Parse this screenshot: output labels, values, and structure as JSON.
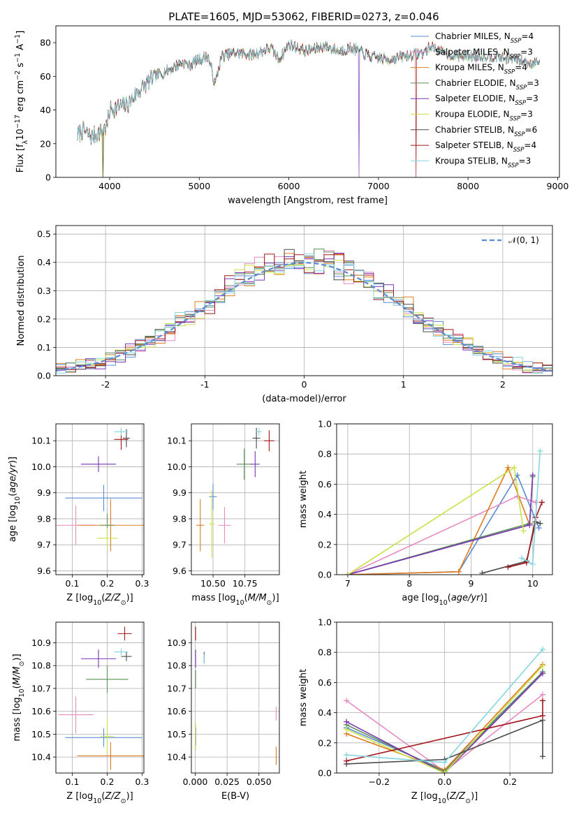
{
  "title": "PLATE=1605, MJD=53062, FIBERID=0273, z=0.046",
  "colors": {
    "Chabrier MILES": "#5b8bd6",
    "Salpeter MILES": "#e78ac3",
    "Kroupa MILES": "#e07b1f",
    "Chabrier ELODIE": "#5a8f55",
    "Salpeter ELODIE": "#7b35b5",
    "Kroupa ELODIE": "#c9e24a",
    "Chabrier STELIB": "#4a4a4a",
    "Salpeter STELIB": "#a3161c",
    "Kroupa STELIB": "#84d6e0",
    "normal": "#5b8bd6"
  },
  "chart_data": [
    {
      "id": "spectrum",
      "type": "line",
      "xlabel": "wavelength [Angstrom, rest frame]",
      "ylabel": "Flux [f_λ 10^-17 erg cm^-2 s^-1 A^-1]",
      "xlim": [
        3400,
        9020
      ],
      "ylim": [
        0,
        90
      ],
      "xticks": [
        "4000",
        "5000",
        "6000",
        "7000",
        "8000",
        "9000"
      ],
      "yticks": [
        "0",
        "20",
        "40",
        "60",
        "80"
      ],
      "grid": false,
      "legend": "upper-right",
      "legend_entries": [
        {
          "model": "Chabrier MILES",
          "ssp": "4"
        },
        {
          "model": "Salpeter MILES",
          "ssp": "3"
        },
        {
          "model": "Kroupa MILES",
          "ssp": "4"
        },
        {
          "model": "Chabrier ELODIE",
          "ssp": "3"
        },
        {
          "model": "Salpeter ELODIE",
          "ssp": "3"
        },
        {
          "model": "Kroupa ELODIE",
          "ssp": "3"
        },
        {
          "model": "Chabrier STELIB",
          "ssp": "6"
        },
        {
          "model": "Salpeter STELIB",
          "ssp": "4"
        },
        {
          "model": "Kroupa STELIB",
          "ssp": "3"
        }
      ],
      "continuum": [
        [
          3640,
          25
        ],
        [
          3700,
          28
        ],
        [
          3800,
          24
        ],
        [
          3900,
          27
        ],
        [
          3970,
          30
        ],
        [
          4000,
          40
        ],
        [
          4100,
          42
        ],
        [
          4200,
          43
        ],
        [
          4300,
          50
        ],
        [
          4400,
          55
        ],
        [
          4500,
          60
        ],
        [
          4600,
          62
        ],
        [
          4700,
          65
        ],
        [
          4800,
          68
        ],
        [
          4900,
          67
        ],
        [
          5000,
          70
        ],
        [
          5100,
          72
        ],
        [
          5175,
          55
        ],
        [
          5250,
          72
        ],
        [
          5400,
          74
        ],
        [
          5600,
          73
        ],
        [
          5800,
          77
        ],
        [
          5890,
          70
        ],
        [
          6000,
          79
        ],
        [
          6200,
          75
        ],
        [
          6400,
          78
        ],
        [
          6560,
          75
        ],
        [
          6700,
          77
        ],
        [
          6900,
          72
        ],
        [
          7100,
          70
        ],
        [
          7300,
          72
        ],
        [
          7500,
          74
        ],
        [
          7600,
          78
        ],
        [
          7700,
          74
        ],
        [
          7900,
          72
        ],
        [
          8100,
          72
        ],
        [
          8300,
          72
        ],
        [
          8500,
          70
        ],
        [
          8700,
          68
        ],
        [
          8800,
          69
        ]
      ],
      "dips": [
        {
          "series": "Kroupa ELODIE",
          "x": 3920
        },
        {
          "series": "Chabrier STELIB",
          "x": 3930
        },
        {
          "series": "Salpeter ELODIE",
          "x": 6780
        },
        {
          "series": "Salpeter STELIB",
          "x": 7420
        }
      ]
    },
    {
      "id": "residuals",
      "type": "line",
      "xlabel": "(data-model)/error",
      "ylabel": "Normed distribution",
      "xlim": [
        -2.5,
        2.5
      ],
      "ylim": [
        0,
        0.53
      ],
      "xticks": [
        -2,
        -1,
        0,
        1,
        2
      ],
      "yticks": [
        "0.0",
        "0.1",
        "0.2",
        "0.3",
        "0.4",
        "0.5"
      ],
      "grid": true,
      "legend": "upper-right",
      "legend_label": "𝒩(0, 1)",
      "bin_width": 0.1,
      "bin_start": -2.5,
      "curve": {
        "mu": 0,
        "sigma": 1
      }
    },
    {
      "id": "age-vs-Z",
      "type": "scatter",
      "xlabel": "Z [log10(Z/Z⊙)]",
      "ylabel": "age  [log10(age/yr)]",
      "xlim": [
        0.053,
        0.305
      ],
      "ylim": [
        9.585,
        10.165
      ],
      "xticks": [
        "0.1",
        "0.2",
        "0.3"
      ],
      "yticks": [
        "9.6",
        "9.7",
        "9.8",
        "9.9",
        "10.0",
        "10.1"
      ],
      "grid": true,
      "points": [
        {
          "series": "Chabrier MILES",
          "x": 0.19,
          "y": 9.88,
          "xerr": 0.11,
          "yerr": 0.05
        },
        {
          "series": "Salpeter MILES",
          "x": 0.11,
          "y": 9.775,
          "xerr": 0.055,
          "yerr": 0.075
        },
        {
          "series": "Kroupa MILES",
          "x": 0.21,
          "y": 9.775,
          "xerr": 0.095,
          "yerr": 0.1
        },
        {
          "series": "Chabrier ELODIE",
          "x": 0.2,
          "y": 9.775,
          "xerr": 0.02,
          "yerr": 0.045
        },
        {
          "series": "Salpeter ELODIE",
          "x": 0.175,
          "y": 10.01,
          "xerr": 0.05,
          "yerr": 0.03
        },
        {
          "series": "Kroupa ELODIE",
          "x": 0.2,
          "y": 9.725,
          "xerr": 0.03,
          "yerr": 0.04
        },
        {
          "series": "Chabrier STELIB",
          "x": 0.255,
          "y": 10.11,
          "xerr": 0.01,
          "yerr": 0.035
        },
        {
          "series": "Salpeter STELIB",
          "x": 0.24,
          "y": 10.105,
          "xerr": 0.02,
          "yerr": 0.04
        },
        {
          "series": "Kroupa STELIB",
          "x": 0.24,
          "y": 10.135,
          "xerr": 0.02,
          "yerr": 0.015
        }
      ]
    },
    {
      "id": "age-vs-mass",
      "type": "scatter",
      "xlabel": "mass [log10(M/M⊙)]",
      "ylabel": "",
      "xlim": [
        10.33,
        11.02
      ],
      "ylim": [
        9.585,
        10.165
      ],
      "xticks": [
        "10.50",
        "10.75"
      ],
      "yticks": [
        "9.6",
        "9.7",
        "9.8",
        "9.9",
        "10.0",
        "10.1"
      ],
      "grid": true,
      "points": [
        {
          "series": "Chabrier MILES",
          "x": 10.5,
          "y": 9.885,
          "xerr": 0.03,
          "yerr": 0.05
        },
        {
          "series": "Salpeter MILES",
          "x": 10.59,
          "y": 9.775,
          "xerr": 0.05,
          "yerr": 0.07
        },
        {
          "series": "Kroupa MILES",
          "x": 10.4,
          "y": 9.775,
          "xerr": 0.03,
          "yerr": 0.1
        },
        {
          "series": "Chabrier ELODIE",
          "x": 10.745,
          "y": 10.01,
          "xerr": 0.06,
          "yerr": 0.06
        },
        {
          "series": "Salpeter ELODIE",
          "x": 10.83,
          "y": 10.01,
          "xerr": 0.035,
          "yerr": 0.05
        },
        {
          "series": "Kroupa ELODIE",
          "x": 10.49,
          "y": 9.78,
          "xerr": 0.02,
          "yerr": 0.13
        },
        {
          "series": "Chabrier STELIB",
          "x": 10.84,
          "y": 10.11,
          "xerr": 0.03,
          "yerr": 0.04
        },
        {
          "series": "Salpeter STELIB",
          "x": 10.94,
          "y": 10.1,
          "xerr": 0.04,
          "yerr": 0.04
        },
        {
          "series": "Kroupa STELIB",
          "x": 10.86,
          "y": 10.135,
          "xerr": 0.02,
          "yerr": 0.015
        }
      ]
    },
    {
      "id": "weight-vs-age",
      "type": "line",
      "xlabel": "age  [log10(age/yr)]",
      "ylabel": "mass weight",
      "xlim": [
        6.82,
        10.32
      ],
      "ylim": [
        0,
        1
      ],
      "xticks": [
        "7",
        "8",
        "9",
        "10"
      ],
      "yticks": [
        "0.0",
        "0.2",
        "0.4",
        "0.6",
        "0.8",
        "1.0"
      ],
      "grid": true,
      "series": [
        {
          "name": "Chabrier MILES",
          "x": [
            7.0,
            8.8,
            9.75,
            10.1
          ],
          "y": [
            0.0,
            0.02,
            0.66,
            0.31
          ]
        },
        {
          "name": "Salpeter MILES",
          "x": [
            7.0,
            9.75,
            10.05
          ],
          "y": [
            0.0,
            0.52,
            0.48
          ]
        },
        {
          "name": "Kroupa MILES",
          "x": [
            7.0,
            8.8,
            9.6,
            9.95
          ],
          "y": [
            0.0,
            0.02,
            0.71,
            0.33
          ]
        },
        {
          "name": "Chabrier ELODIE",
          "x": [
            7.0,
            9.95,
            10.0
          ],
          "y": [
            0.0,
            0.34,
            0.65
          ]
        },
        {
          "name": "Salpeter ELODIE",
          "x": [
            7.0,
            9.95,
            10.0
          ],
          "y": [
            0.0,
            0.33,
            0.66
          ]
        },
        {
          "name": "Kroupa ELODIE",
          "x": [
            7.0,
            9.7,
            9.85
          ],
          "y": [
            0.0,
            0.71,
            0.29
          ]
        },
        {
          "name": "Chabrier STELIB",
          "x": [
            9.18,
            9.9,
            10.05,
            10.12
          ],
          "y": [
            0.01,
            0.09,
            0.35,
            0.34
          ]
        },
        {
          "name": "Salpeter STELIB",
          "x": [
            9.6,
            9.9,
            10.05,
            10.15
          ],
          "y": [
            0.05,
            0.08,
            0.38,
            0.48
          ]
        },
        {
          "name": "Kroupa STELIB",
          "x": [
            9.82,
            10.0,
            10.12
          ],
          "y": [
            0.11,
            0.07,
            0.82
          ]
        }
      ]
    },
    {
      "id": "mass-vs-Z",
      "type": "scatter",
      "xlabel": "Z [log10(Z/Z⊙)]",
      "ylabel": "mass [log10(M/M⊙)]",
      "xlim": [
        0.053,
        0.305
      ],
      "ylim": [
        10.33,
        10.99
      ],
      "xticks": [
        "0.1",
        "0.2",
        "0.3"
      ],
      "yticks": [
        "10.4",
        "10.5",
        "10.6",
        "10.7",
        "10.8",
        "10.9"
      ],
      "grid": true,
      "points": [
        {
          "series": "Chabrier MILES",
          "x": 0.19,
          "y": 10.485,
          "xerr": 0.11,
          "yerr": 0.04
        },
        {
          "series": "Salpeter MILES",
          "x": 0.11,
          "y": 10.585,
          "xerr": 0.05,
          "yerr": 0.08
        },
        {
          "series": "Kroupa MILES",
          "x": 0.21,
          "y": 10.405,
          "xerr": 0.095,
          "yerr": 0.06
        },
        {
          "series": "Chabrier ELODIE",
          "x": 0.2,
          "y": 10.74,
          "xerr": 0.06,
          "yerr": 0.06
        },
        {
          "series": "Salpeter ELODIE",
          "x": 0.175,
          "y": 10.83,
          "xerr": 0.05,
          "yerr": 0.04
        },
        {
          "series": "Kroupa ELODIE",
          "x": 0.2,
          "y": 10.49,
          "xerr": 0.02,
          "yerr": 0.08
        },
        {
          "series": "Chabrier STELIB",
          "x": 0.255,
          "y": 10.84,
          "xerr": 0.015,
          "yerr": 0.02
        },
        {
          "series": "Salpeter STELIB",
          "x": 0.25,
          "y": 10.94,
          "xerr": 0.02,
          "yerr": 0.03
        },
        {
          "series": "Kroupa STELIB",
          "x": 0.24,
          "y": 10.86,
          "xerr": 0.02,
          "yerr": 0.015
        }
      ]
    },
    {
      "id": "mass-vs-EBV",
      "type": "scatter",
      "xlabel": "E(B-V)",
      "ylabel": "",
      "xlim": [
        -0.003,
        0.066
      ],
      "ylim": [
        10.33,
        10.99
      ],
      "xticks": [
        "0.000",
        "0.025",
        "0.050"
      ],
      "yticks": [
        "10.4",
        "10.5",
        "10.6",
        "10.7",
        "10.8",
        "10.9"
      ],
      "grid": true,
      "points": [
        {
          "series": "Chabrier MILES",
          "x": 0.0005,
          "y": 10.49,
          "xerr": 0,
          "yerr": 0.04
        },
        {
          "series": "Salpeter MILES",
          "x": 0.0635,
          "y": 10.59,
          "xerr": 0,
          "yerr": 0.03
        },
        {
          "series": "Kroupa MILES",
          "x": 0.0635,
          "y": 10.405,
          "xerr": 0,
          "yerr": 0.04
        },
        {
          "series": "Chabrier ELODIE",
          "x": 0.0003,
          "y": 10.74,
          "xerr": 0,
          "yerr": 0.04
        },
        {
          "series": "Salpeter ELODIE",
          "x": 0.0003,
          "y": 10.83,
          "xerr": 0,
          "yerr": 0.04
        },
        {
          "series": "Kroupa ELODIE",
          "x": 0.0003,
          "y": 10.49,
          "xerr": 0,
          "yerr": 0.06
        },
        {
          "series": "Chabrier STELIB",
          "x": 0.007,
          "y": 10.835,
          "xerr": 0,
          "yerr": 0.025
        },
        {
          "series": "Salpeter STELIB",
          "x": 0.0003,
          "y": 10.94,
          "xerr": 0,
          "yerr": 0.03
        },
        {
          "series": "Kroupa STELIB",
          "x": 0.007,
          "y": 10.83,
          "xerr": 0,
          "yerr": 0.02
        }
      ]
    },
    {
      "id": "weight-vs-Z",
      "type": "line",
      "xlabel": "Z [log10(Z/Z⊙)]",
      "ylabel": "mass weight",
      "xlim": [
        -0.33,
        0.33
      ],
      "ylim": [
        0,
        1
      ],
      "xticks": [
        "−0.2",
        "0.0",
        "0.2"
      ],
      "xtick_values": [
        -0.2,
        0.0,
        0.2
      ],
      "yticks": [
        "0.0",
        "0.2",
        "0.4",
        "0.6",
        "0.8",
        "1.0"
      ],
      "grid": true,
      "series": [
        {
          "name": "Chabrier MILES",
          "x": [
            -0.3,
            0.0,
            0.3
          ],
          "y": [
            0.3,
            0.02,
            0.67
          ]
        },
        {
          "name": "Salpeter MILES",
          "x": [
            -0.3,
            0.0,
            0.3
          ],
          "y": [
            0.48,
            0.01,
            0.52
          ]
        },
        {
          "name": "Kroupa MILES",
          "x": [
            -0.3,
            0.0,
            0.3
          ],
          "y": [
            0.26,
            0.02,
            0.72
          ]
        },
        {
          "name": "Chabrier ELODIE",
          "x": [
            -0.3,
            0.0,
            0.3
          ],
          "y": [
            0.32,
            0.01,
            0.67
          ]
        },
        {
          "name": "Salpeter ELODIE",
          "x": [
            -0.3,
            0.0,
            0.3
          ],
          "y": [
            0.34,
            0.0,
            0.66
          ]
        },
        {
          "name": "Kroupa ELODIE",
          "x": [
            -0.3,
            0.0,
            0.3
          ],
          "y": [
            0.29,
            0.0,
            0.71
          ]
        },
        {
          "name": "Chabrier STELIB",
          "x": [
            -0.3,
            0.0,
            0.3,
            0.3
          ],
          "y": [
            0.06,
            0.09,
            0.35,
            0.11
          ]
        },
        {
          "name": "Salpeter STELIB",
          "x": [
            -0.3,
            0.3,
            0.3
          ],
          "y": [
            0.08,
            0.38,
            0.48
          ]
        },
        {
          "name": "Kroupa STELIB",
          "x": [
            -0.3,
            0.0,
            0.3
          ],
          "y": [
            0.12,
            0.07,
            0.82
          ]
        }
      ]
    }
  ]
}
